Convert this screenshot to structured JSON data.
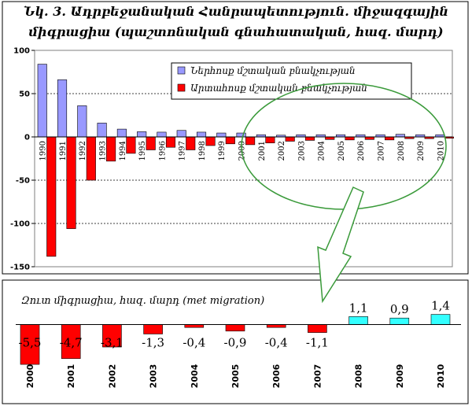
{
  "title": {
    "line1": "Նկ. 3. Ադրբեջանական Հանրապետություն. միջազգային",
    "line2": "միգրացիա (պաշտոնական գնահատական, հազ. մարդ)"
  },
  "chart_data": [
    {
      "type": "bar",
      "categories": [
        "1990",
        "1991",
        "1992",
        "1993",
        "1994",
        "1995",
        "1996",
        "1997",
        "1998",
        "1999",
        "2000",
        "2001",
        "2002",
        "2003",
        "2004",
        "2005",
        "2006",
        "2007",
        "2008",
        "2009",
        "2010"
      ],
      "series": [
        {
          "name": "Ներհոսք մշտական բնակչության",
          "color": "#9999ff",
          "values": [
            84,
            66,
            36,
            16,
            9,
            6,
            5.5,
            7.5,
            5.5,
            4.5,
            4.5,
            2.5,
            2,
            2.5,
            2.5,
            2.5,
            2.5,
            2.5,
            3,
            2.5,
            2.5
          ]
        },
        {
          "name": "Արտահոսք մշտական բնակչության",
          "color": "#ff0000",
          "values": [
            -138,
            -106,
            -50,
            -28,
            -19,
            -15,
            -12,
            -15,
            -10,
            -8,
            -9,
            -7,
            -5,
            -4,
            -3,
            -3.5,
            -3,
            -3.5,
            -2,
            -2,
            -1.5
          ]
        }
      ],
      "yticks": [
        "100",
        "50",
        "0",
        "-50",
        "-100",
        "-150"
      ],
      "ylim": [
        -150,
        100
      ],
      "grid": true,
      "legend_placement": "top-right"
    },
    {
      "type": "bar",
      "title": "Զուտ միգրացիա, հազ. մարդ (met migration)",
      "categories": [
        "2000",
        "2001",
        "2002",
        "2003",
        "2004",
        "2005",
        "2006",
        "2007",
        "2008",
        "2009",
        "2010"
      ],
      "values": [
        -5.5,
        -4.7,
        -3.1,
        -1.3,
        -0.4,
        -0.9,
        -0.4,
        -1.1,
        1.1,
        0.9,
        1.4
      ],
      "labels": [
        "-5,5",
        "-4,7",
        "-3,1",
        "-1,3",
        "-0,4",
        "-0,9",
        "-0,4",
        "-1,1",
        "1,1",
        "0,9",
        "1,4"
      ],
      "colors": {
        "negative": "#ff0000",
        "positive": "#33ffff"
      }
    }
  ]
}
